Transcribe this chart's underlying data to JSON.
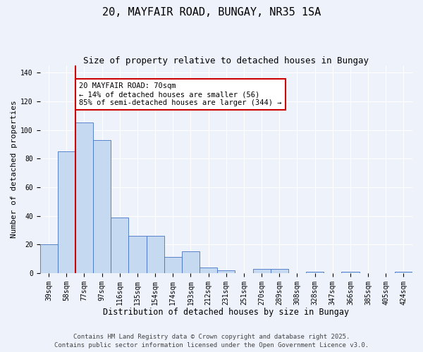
{
  "title": "20, MAYFAIR ROAD, BUNGAY, NR35 1SA",
  "subtitle": "Size of property relative to detached houses in Bungay",
  "xlabel": "Distribution of detached houses by size in Bungay",
  "ylabel": "Number of detached properties",
  "categories": [
    "39sqm",
    "58sqm",
    "77sqm",
    "97sqm",
    "116sqm",
    "135sqm",
    "154sqm",
    "174sqm",
    "193sqm",
    "212sqm",
    "231sqm",
    "251sqm",
    "270sqm",
    "289sqm",
    "308sqm",
    "328sqm",
    "347sqm",
    "366sqm",
    "385sqm",
    "405sqm",
    "424sqm"
  ],
  "values": [
    20,
    85,
    105,
    93,
    39,
    26,
    26,
    11,
    15,
    4,
    2,
    0,
    3,
    3,
    0,
    1,
    0,
    1,
    0,
    0,
    1
  ],
  "bar_color": "#c5d9f0",
  "bar_edge_color": "#4472c4",
  "vline_x_index": 1.5,
  "vline_color": "#cc0000",
  "annotation_text": "20 MAYFAIR ROAD: 70sqm\n← 14% of detached houses are smaller (56)\n85% of semi-detached houses are larger (344) →",
  "annotation_box_color": "#ffffff",
  "annotation_box_edge": "#cc0000",
  "ylim": [
    0,
    145
  ],
  "yticks": [
    0,
    20,
    40,
    60,
    80,
    100,
    120,
    140
  ],
  "background_color": "#eef2fb",
  "grid_color": "#ffffff",
  "footer1": "Contains HM Land Registry data © Crown copyright and database right 2025.",
  "footer2": "Contains public sector information licensed under the Open Government Licence v3.0.",
  "title_fontsize": 11,
  "subtitle_fontsize": 9,
  "xlabel_fontsize": 8.5,
  "ylabel_fontsize": 8,
  "tick_fontsize": 7,
  "annot_fontsize": 7.5,
  "footer_fontsize": 6.5
}
